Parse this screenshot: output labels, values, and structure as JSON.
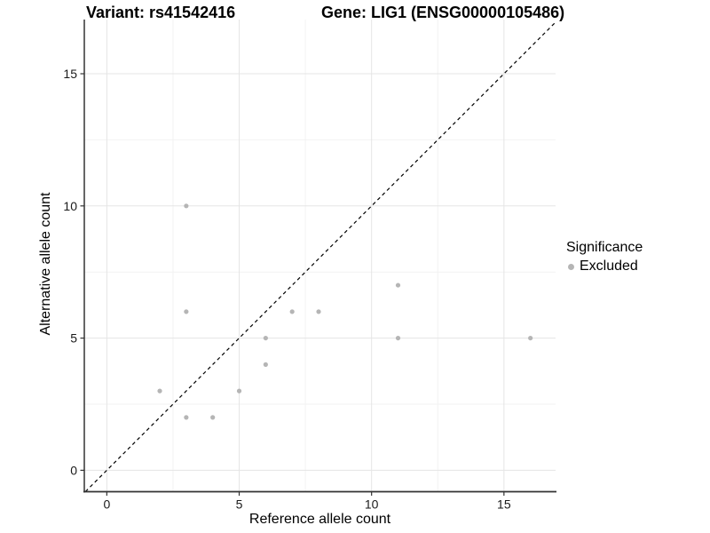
{
  "chart_data": {
    "type": "scatter",
    "title_left": "Variant: rs41542416",
    "title_right": "Gene: LIG1 (ENSG00000105486)",
    "xlabel": "Reference allele count",
    "ylabel": "Alternative allele count",
    "xlim": [
      -0.85,
      16.95
    ],
    "ylim": [
      -0.81,
      17.05
    ],
    "x_ticks": [
      0,
      5,
      10,
      15
    ],
    "y_ticks": [
      0,
      5,
      10,
      15
    ],
    "x_minor_ticks": [
      2.5,
      7.5,
      12.5
    ],
    "y_minor_ticks": [
      2.5,
      7.5,
      12.5
    ],
    "series": [
      {
        "name": "Excluded",
        "color": "#b5b5b5",
        "points": [
          [
            2,
            3
          ],
          [
            3,
            2
          ],
          [
            3,
            6
          ],
          [
            3,
            10
          ],
          [
            4,
            2
          ],
          [
            5,
            3
          ],
          [
            6,
            4
          ],
          [
            6,
            5
          ],
          [
            7,
            6
          ],
          [
            8,
            6
          ],
          [
            11,
            5
          ],
          [
            11,
            7
          ],
          [
            16,
            5
          ]
        ]
      }
    ],
    "reference_line": {
      "type": "identity",
      "equation": "y = x",
      "style": "dashed",
      "color": "#000000"
    },
    "legend": {
      "title": "Significance",
      "position": "right",
      "items": [
        {
          "label": "Excluded",
          "color": "#b5b5b5"
        }
      ]
    },
    "grid": {
      "major_color": "#e5e5e5",
      "minor_color": "#f2f2f2",
      "major_on": true,
      "minor_on": true
    },
    "axis_line_color": "#333333",
    "tick_label_color": "#1a1a1a",
    "tick_label_size": 14
  }
}
